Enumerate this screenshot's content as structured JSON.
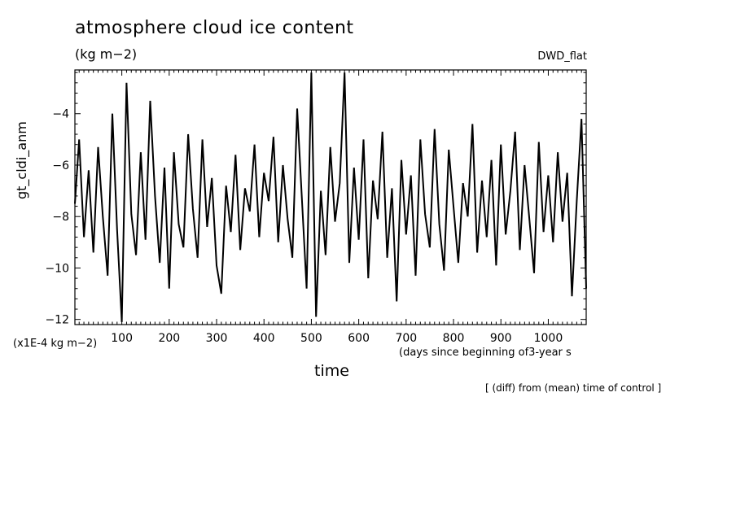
{
  "chart_data": {
    "type": "line",
    "title": "atmosphere cloud ice content",
    "units_label": "(kg m−2)",
    "experiment": "DWD_flat",
    "ylabel": "gt_cldi_anm",
    "xlabel": "time",
    "scale_note": "(x1E-4 kg m−2)",
    "x_unit_note": "(days since beginning of3-year s",
    "footnote": "[ (diff) from (mean) time of control ]",
    "xlim": [
      1,
      1080
    ],
    "ylim": [
      -12.2,
      -2.3
    ],
    "x_ticks": [
      100,
      200,
      300,
      400,
      500,
      600,
      700,
      800,
      900,
      1000
    ],
    "y_ticks": [
      -12,
      -10,
      -8,
      -6,
      -4
    ],
    "series": [
      {
        "x": [
          1,
          10,
          20,
          30,
          40,
          50,
          60,
          70,
          80,
          90,
          100,
          110,
          120,
          130,
          140,
          150,
          160,
          170,
          180,
          190,
          200,
          210,
          220,
          230,
          240,
          250,
          260,
          270,
          280,
          290,
          300,
          310,
          320,
          330,
          340,
          350,
          360,
          370,
          380,
          390,
          400,
          410,
          420,
          430,
          440,
          450,
          460,
          470,
          480,
          490,
          500,
          510,
          520,
          530,
          540,
          550,
          560,
          570,
          580,
          590,
          600,
          610,
          620,
          630,
          640,
          650,
          660,
          670,
          680,
          690,
          700,
          710,
          720,
          730,
          740,
          750,
          760,
          770,
          780,
          790,
          800,
          810,
          820,
          830,
          840,
          850,
          860,
          870,
          880,
          890,
          900,
          910,
          920,
          930,
          940,
          950,
          960,
          970,
          980,
          990,
          1000,
          1010,
          1020,
          1030,
          1040,
          1050,
          1060,
          1070,
          1080
        ],
        "y": [
          -7.5,
          -5.0,
          -8.8,
          -6.2,
          -9.4,
          -5.3,
          -8.0,
          -10.3,
          -4.0,
          -8.5,
          -12.1,
          -2.8,
          -7.9,
          -9.5,
          -5.5,
          -8.9,
          -3.5,
          -7.2,
          -9.8,
          -6.1,
          -10.8,
          -5.5,
          -8.3,
          -9.2,
          -4.8,
          -7.7,
          -9.6,
          -5.0,
          -8.4,
          -6.5,
          -9.9,
          -11.0,
          -6.8,
          -8.6,
          -5.6,
          -9.3,
          -6.9,
          -7.8,
          -5.2,
          -8.8,
          -6.3,
          -7.4,
          -4.9,
          -9.0,
          -6.0,
          -8.1,
          -9.6,
          -3.8,
          -7.3,
          -10.8,
          -2.4,
          -11.9,
          -7.0,
          -9.5,
          -5.3,
          -8.2,
          -6.7,
          -2.4,
          -9.8,
          -6.1,
          -8.9,
          -5.0,
          -10.4,
          -6.6,
          -8.1,
          -4.7,
          -9.6,
          -6.9,
          -11.3,
          -5.8,
          -8.7,
          -6.4,
          -10.3,
          -5.0,
          -7.9,
          -9.2,
          -4.6,
          -8.3,
          -10.1,
          -5.4,
          -7.6,
          -9.8,
          -6.7,
          -8.0,
          -4.4,
          -9.4,
          -6.6,
          -8.8,
          -5.8,
          -9.9,
          -5.2,
          -8.7,
          -7.0,
          -4.7,
          -9.3,
          -6.0,
          -8.1,
          -10.2,
          -5.1,
          -8.6,
          -6.4,
          -9.0,
          -5.5,
          -8.2,
          -6.3,
          -11.1,
          -7.4,
          -4.2,
          -10.8
        ]
      }
    ]
  }
}
